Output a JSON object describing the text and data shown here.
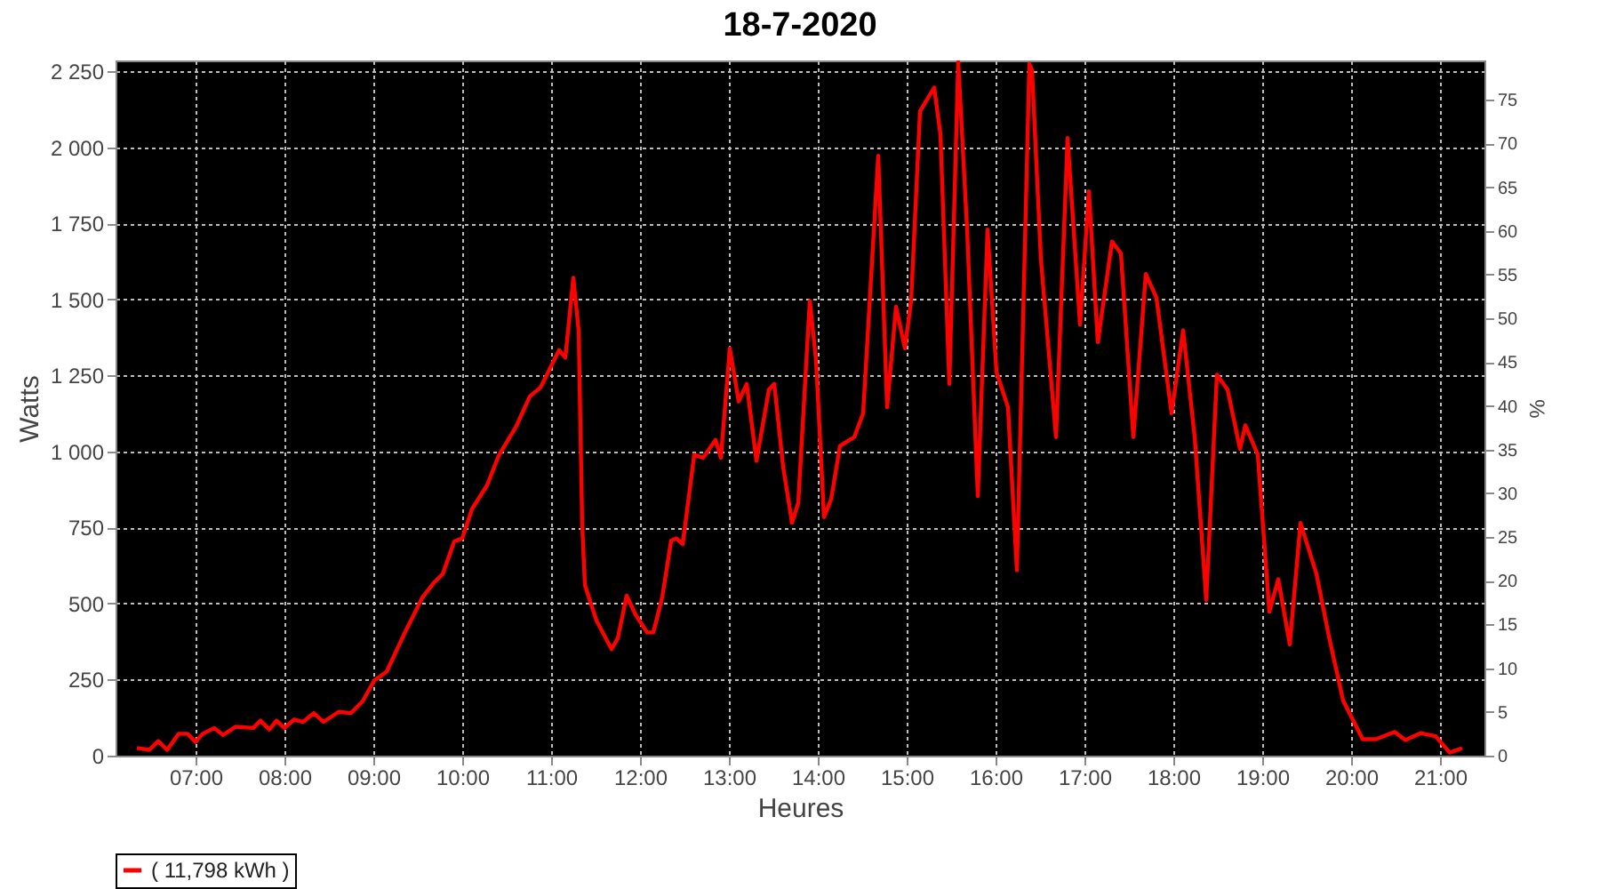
{
  "chart_data": {
    "type": "line",
    "title": "18-7-2020",
    "xlabel": "Heures",
    "ylabel": "Watts",
    "y2label": "%",
    "xlim": [
      6.1,
      21.5
    ],
    "xticks": [
      {
        "value": 7,
        "label": "07:00"
      },
      {
        "value": 8,
        "label": "08:00"
      },
      {
        "value": 9,
        "label": "09:00"
      },
      {
        "value": 10,
        "label": "10:00"
      },
      {
        "value": 11,
        "label": "11:00"
      },
      {
        "value": 12,
        "label": "12:00"
      },
      {
        "value": 13,
        "label": "13:00"
      },
      {
        "value": 14,
        "label": "14:00"
      },
      {
        "value": 15,
        "label": "15:00"
      },
      {
        "value": 16,
        "label": "16:00"
      },
      {
        "value": 17,
        "label": "17:00"
      },
      {
        "value": 18,
        "label": "18:00"
      },
      {
        "value": 19,
        "label": "19:00"
      },
      {
        "value": 20,
        "label": "20:00"
      },
      {
        "value": 21,
        "label": "21:00"
      }
    ],
    "ylim": [
      0,
      2285
    ],
    "yticks": [
      0,
      250,
      500,
      750,
      {
        "value": 1000,
        "label": "1 000"
      },
      {
        "value": 1250,
        "label": "1 250"
      },
      {
        "value": 1500,
        "label": "1 500"
      },
      {
        "value": 1750,
        "label": "1 750"
      },
      {
        "value": 2000,
        "label": "2 000"
      },
      {
        "value": 2250,
        "label": "2 250"
      }
    ],
    "y2lim": [
      0,
      79.5
    ],
    "y2ticks": [
      0,
      5,
      10,
      15,
      20,
      25,
      30,
      35,
      40,
      45,
      50,
      55,
      60,
      65,
      70,
      75
    ],
    "grid": true,
    "legend": "bottom",
    "marker": "none",
    "line_style": "solid",
    "series": [
      {
        "name": "( 11,798 kWh )",
        "color": "#ff0000",
        "x": [
          6.34,
          6.48,
          6.58,
          6.68,
          6.81,
          6.91,
          7.0,
          7.08,
          7.21,
          7.31,
          7.45,
          7.65,
          7.73,
          7.83,
          7.91,
          8.0,
          8.11,
          8.21,
          8.33,
          8.44,
          8.61,
          8.75,
          8.88,
          9.01,
          9.15,
          9.35,
          9.55,
          9.68,
          9.78,
          9.91,
          10.0,
          10.11,
          10.28,
          10.41,
          10.61,
          10.76,
          10.88,
          11.03,
          11.09,
          11.16,
          11.25,
          11.31,
          11.35,
          11.38,
          11.51,
          11.68,
          11.75,
          11.85,
          11.95,
          12.08,
          12.15,
          12.25,
          12.35,
          12.41,
          12.48,
          12.61,
          12.71,
          12.85,
          12.91,
          13.01,
          13.11,
          13.2,
          13.31,
          13.45,
          13.51,
          13.61,
          13.71,
          13.78,
          13.91,
          13.98,
          14.07,
          14.15,
          14.25,
          14.41,
          14.51,
          14.68,
          14.78,
          14.88,
          14.98,
          15.05,
          15.15,
          15.21,
          15.31,
          15.38,
          15.48,
          15.58,
          15.68,
          15.8,
          15.91,
          16.01,
          16.14,
          16.24,
          16.38,
          16.41,
          16.51,
          16.68,
          16.81,
          16.95,
          17.05,
          17.15,
          17.31,
          17.41,
          17.55,
          17.69,
          17.81,
          17.98,
          18.11,
          18.24,
          18.37,
          18.49,
          18.61,
          18.75,
          18.81,
          18.95,
          19.08,
          19.18,
          19.31,
          19.43,
          19.61,
          19.75,
          19.91,
          20.13,
          20.28,
          20.49,
          20.61,
          20.78,
          20.95,
          21.11,
          21.25
        ],
        "values": [
          25,
          19,
          48,
          19,
          72,
          72,
          45,
          72,
          91,
          68,
          95,
          91,
          115,
          86,
          115,
          91,
          119,
          111,
          140,
          111,
          144,
          140,
          179,
          247,
          276,
          402,
          519,
          568,
          597,
          704,
          714,
          811,
          889,
          986,
          1084,
          1181,
          1210,
          1298,
          1333,
          1308,
          1571,
          1396,
          755,
          561,
          444,
          350,
          386,
          526,
          463,
          405,
          405,
          521,
          707,
          714,
          695,
          989,
          979,
          1038,
          979,
          1339,
          1164,
          1222,
          969,
          1203,
          1222,
          950,
          765,
          831,
          1495,
          1300,
          784,
          843,
          1018,
          1047,
          1125,
          1972,
          1145,
          1476,
          1339,
          1495,
          2118,
          2147,
          2196,
          2041,
          1222,
          2280,
          1729,
          853,
          1729,
          1261,
          1145,
          609,
          2274,
          2254,
          1631,
          1047,
          2030,
          1417,
          1855,
          1359,
          1690,
          1651,
          1047,
          1583,
          1505,
          1125,
          1398,
          1047,
          512,
          1252,
          1203,
          1008,
          1086,
          989,
          473,
          580,
          366,
          765,
          597,
          392,
          181,
          54,
          54,
          78,
          51,
          74,
          64,
          10,
          25
        ]
      }
    ]
  }
}
